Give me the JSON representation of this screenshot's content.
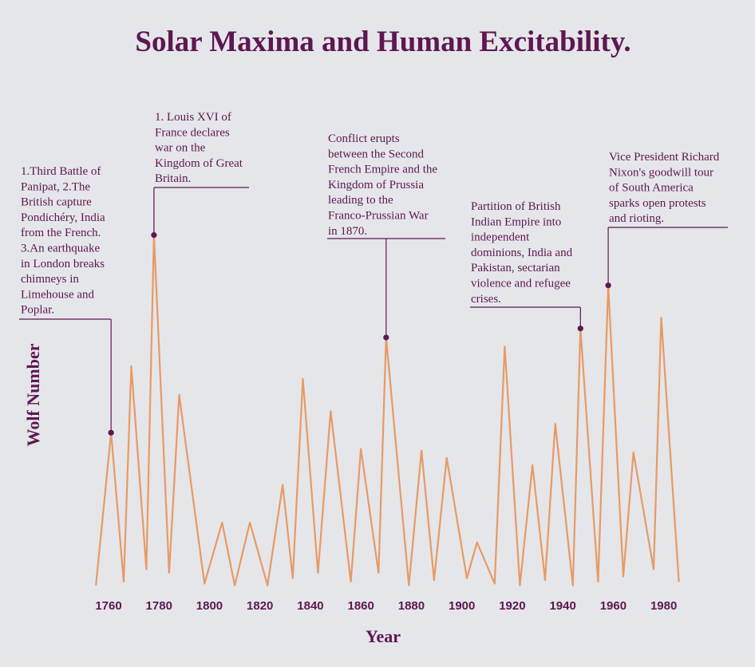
{
  "chart_data": {
    "type": "line",
    "title": "Solar Maxima and Human Excitability.",
    "xlabel": "Year",
    "ylabel": "Wolf Number",
    "xlim": [
      1750,
      1990
    ],
    "ylim": [
      0,
      200
    ],
    "x_ticks": [
      "1760",
      "1780",
      "1800",
      "1820",
      "1840",
      "1860",
      "1880",
      "1900",
      "1920",
      "1940",
      "1960",
      "1980"
    ],
    "grid": false,
    "colors": {
      "line": "#e89a63",
      "accent": "#5e1751",
      "background": "#e5e6ea"
    },
    "series": [
      {
        "x": [
          1755,
          1761,
          1766,
          1769,
          1775,
          1778,
          1784,
          1788,
          1798,
          1805,
          1810,
          1816,
          1823,
          1829,
          1833,
          1837,
          1843,
          1848,
          1856,
          1860,
          1867,
          1870,
          1879,
          1884,
          1889,
          1894,
          1902,
          1906,
          1913,
          1917,
          1923,
          1928,
          1933,
          1937,
          1944,
          1947,
          1954,
          1958,
          1964,
          1968,
          1976,
          1979,
          1986
        ],
        "y": [
          1,
          86,
          3,
          123,
          10,
          196,
          8,
          107,
          2,
          36,
          1,
          36,
          1,
          57,
          5,
          116,
          8,
          98,
          3,
          77,
          8,
          139,
          1,
          76,
          4,
          72,
          5,
          25,
          2,
          134,
          1,
          68,
          4,
          91,
          1,
          144,
          3,
          168,
          6,
          75,
          10,
          150,
          3
        ]
      }
    ],
    "annotations": [
      {
        "x": 1761,
        "y": 86,
        "lines": [
          "1.Third Battle of",
          "Panipat, 2.The",
          "British capture",
          "Pondichéry, India",
          "from the French.",
          "3.An earthquake",
          "in London breaks",
          "chimneys in",
          "Limehouse and",
          "Poplar."
        ]
      },
      {
        "x": 1778,
        "y": 196,
        "lines": [
          "1. Louis XVI of",
          "France declares",
          "war on the",
          "Kingdom of Great",
          "Britain."
        ]
      },
      {
        "x": 1870,
        "y": 139,
        "lines": [
          "Conflict erupts",
          "between the Second",
          "French Empire and the",
          "Kingdom of Prussia",
          "leading to the",
          "Franco-Prussian War",
          "in 1870."
        ]
      },
      {
        "x": 1947,
        "y": 144,
        "lines": [
          "Partition of British",
          "Indian Empire into",
          "independent",
          "dominions, India and",
          "Pakistan, sectarian",
          "violence and refugee",
          "crises."
        ]
      },
      {
        "x": 1958,
        "y": 168,
        "lines": [
          "Vice President Richard",
          "Nixon's goodwill tour",
          "of South America",
          "sparks open protests",
          "and rioting."
        ]
      }
    ]
  }
}
